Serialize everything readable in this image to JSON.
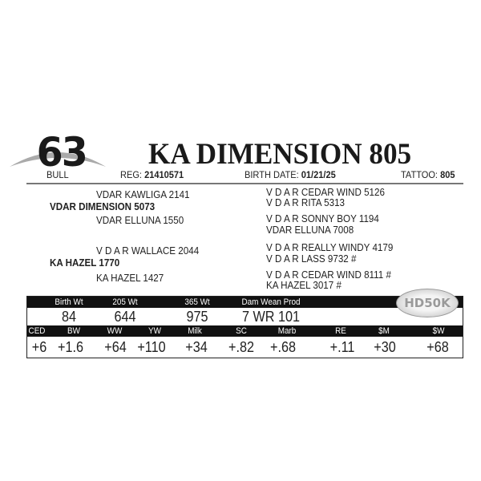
{
  "lot": {
    "number": "63",
    "type": "BULL"
  },
  "animal": {
    "name": "KA DIMENSION 805",
    "reg_label": "REG:",
    "reg": "21410571",
    "birth_label": "BIRTH DATE:",
    "birth_date": "01/21/25",
    "tattoo_label": "TATTOO:",
    "tattoo": "805"
  },
  "pedigree": {
    "sire": "VDAR DIMENSION 5073",
    "sire_sire": "VDAR KAWLIGA 2141",
    "sire_dam": "VDAR ELLUNA 1550",
    "dam": "KA HAZEL 1770",
    "dam_sire": "V D A R WALLACE 2044",
    "dam_dam": "KA HAZEL 1427",
    "ggp": [
      "V D A R CEDAR WIND 5126",
      "V D A R RITA 5313",
      "V D A R SONNY BOY 1194",
      "VDAR ELLUNA 7008",
      "V D A R REALLY WINDY 4179",
      "V D A R LASS 9732 #",
      "V D A R CEDAR WIND 8111 #",
      "KA HAZEL 3017 #"
    ]
  },
  "performance": {
    "headers": [
      "Birth Wt",
      "205 Wt",
      "365 Wt",
      "Dam Wean Prod"
    ],
    "values": [
      "84",
      "644",
      "975",
      "7 WR 101"
    ]
  },
  "epds": {
    "headers": [
      "CED",
      "BW",
      "WW",
      "YW",
      "Milk",
      "SC",
      "Marb",
      "RE",
      "$M",
      "$W"
    ],
    "values": [
      "+6",
      "+1.6",
      "+64",
      "+110",
      "+34",
      "+.82",
      "+.68",
      "+.11",
      "+30",
      "+68"
    ]
  },
  "badge": "HD50K"
}
